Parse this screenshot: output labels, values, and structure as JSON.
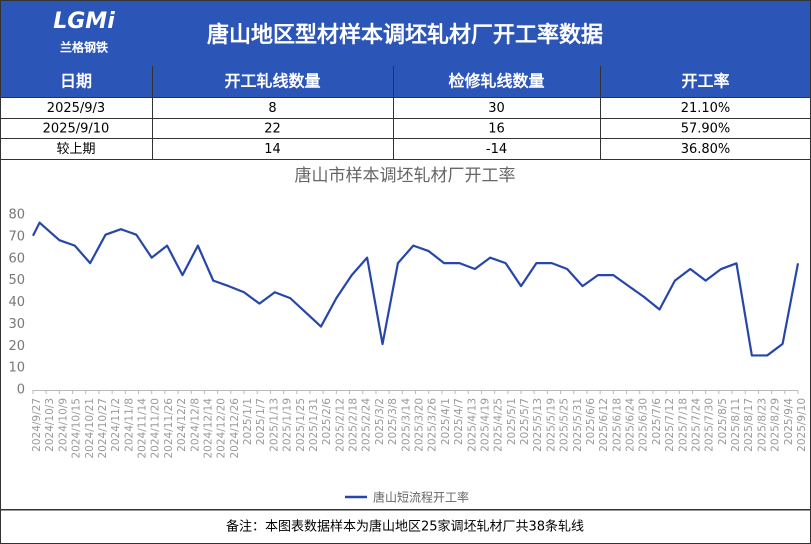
{
  "header": {
    "logo": "LGMi",
    "logo_sub": "兰格钢铁",
    "title": "唐山地区型材样本调坯轧材厂开工率数据"
  },
  "table": {
    "columns": [
      "日期",
      "开工轧线数量",
      "检修轧线数量",
      "开工率"
    ],
    "rows": [
      [
        "2025/9/3",
        "8",
        "30",
        "21.10%"
      ],
      [
        "2025/9/10",
        "22",
        "16",
        "57.90%"
      ],
      [
        "较上期",
        "14",
        "-14",
        "36.80%"
      ]
    ]
  },
  "chart_data": {
    "type": "line",
    "title": "唐山市样本调坯轧材厂开工率",
    "x": [
      "2024/9/27",
      "2024/9/30",
      "2024/10/9",
      "2024/10/16",
      "2024/10/23",
      "2024/10/30",
      "2024/11/6",
      "2024/11/13",
      "2024/11/20",
      "2024/11/27",
      "2024/12/4",
      "2024/12/11",
      "2024/12/18",
      "2024/12/25",
      "2025/1/1",
      "2025/1/8",
      "2025/1/15",
      "2025/1/22",
      "2025/1/29",
      "2025/2/5",
      "2025/2/12",
      "2025/2/19",
      "2025/2/26",
      "2025/3/5",
      "2025/3/12",
      "2025/3/19",
      "2025/3/26",
      "2025/4/2",
      "2025/4/9",
      "2025/4/16",
      "2025/4/23",
      "2025/4/30",
      "2025/5/7",
      "2025/5/14",
      "2025/5/21",
      "2025/5/28",
      "2025/6/4",
      "2025/6/11",
      "2025/6/18",
      "2025/6/25",
      "2025/7/2",
      "2025/7/9",
      "2025/7/16",
      "2025/7/23",
      "2025/7/30",
      "2025/8/6",
      "2025/8/13",
      "2025/8/20",
      "2025/8/27",
      "2025/9/3",
      "2025/9/10"
    ],
    "series": [
      {
        "name": "唐山短流程开工率",
        "color": "#2747a8",
        "values": [
          70.5,
          76.5,
          68.5,
          66,
          58,
          71,
          73.5,
          71,
          60.5,
          66,
          52.5,
          66,
          50,
          47.5,
          44.7,
          39.5,
          44.7,
          42,
          35.5,
          29,
          42,
          52.5,
          60.5,
          21,
          58,
          66,
          63.5,
          58,
          58,
          55.3,
          60.5,
          58,
          47.5,
          58,
          58,
          55.3,
          47.5,
          52.5,
          52.5,
          47.5,
          42.5,
          36.8,
          50,
          55.3,
          50,
          55.3,
          57.9,
          15.8,
          15.8,
          21.1,
          57.9
        ]
      }
    ],
    "xlim": [
      "2024/9/27",
      "2025/9/10"
    ],
    "xticks": [
      "2024/9/27",
      "2024/10/3",
      "2024/10/9",
      "2024/10/15",
      "2024/10/21",
      "2024/10/27",
      "2024/11/2",
      "2024/11/8",
      "2024/11/14",
      "2024/11/20",
      "2024/11/26",
      "2024/12/2",
      "2024/12/8",
      "2024/12/14",
      "2024/12/20",
      "2024/12/26",
      "2025/1/1",
      "2025/1/7",
      "2025/1/13",
      "2025/1/19",
      "2025/1/25",
      "2025/1/31",
      "2025/2/6",
      "2025/2/12",
      "2025/2/18",
      "2025/2/24",
      "2025/3/2",
      "2025/3/8",
      "2025/3/14",
      "2025/3/20",
      "2025/3/26",
      "2025/4/1",
      "2025/4/7",
      "2025/4/13",
      "2025/4/19",
      "2025/4/25",
      "2025/5/1",
      "2025/5/7",
      "2025/5/13",
      "2025/5/19",
      "2025/5/25",
      "2025/5/31",
      "2025/6/6",
      "2025/6/12",
      "2025/6/18",
      "2025/6/24",
      "2025/6/30",
      "2025/7/6",
      "2025/7/12",
      "2025/7/18",
      "2025/7/24",
      "2025/7/30",
      "2025/8/5",
      "2025/8/11",
      "2025/8/17",
      "2025/8/23",
      "2025/8/29",
      "2025/9/4",
      "2025/9/10"
    ],
    "ylim": [
      0,
      80
    ],
    "yticks": [
      0,
      10,
      20,
      30,
      40,
      50,
      60,
      70,
      80
    ],
    "legend": "bottom"
  },
  "footer": {
    "note": "备注：本图表数据样本为唐山地区25家调坯轧材厂共38条轧线"
  }
}
